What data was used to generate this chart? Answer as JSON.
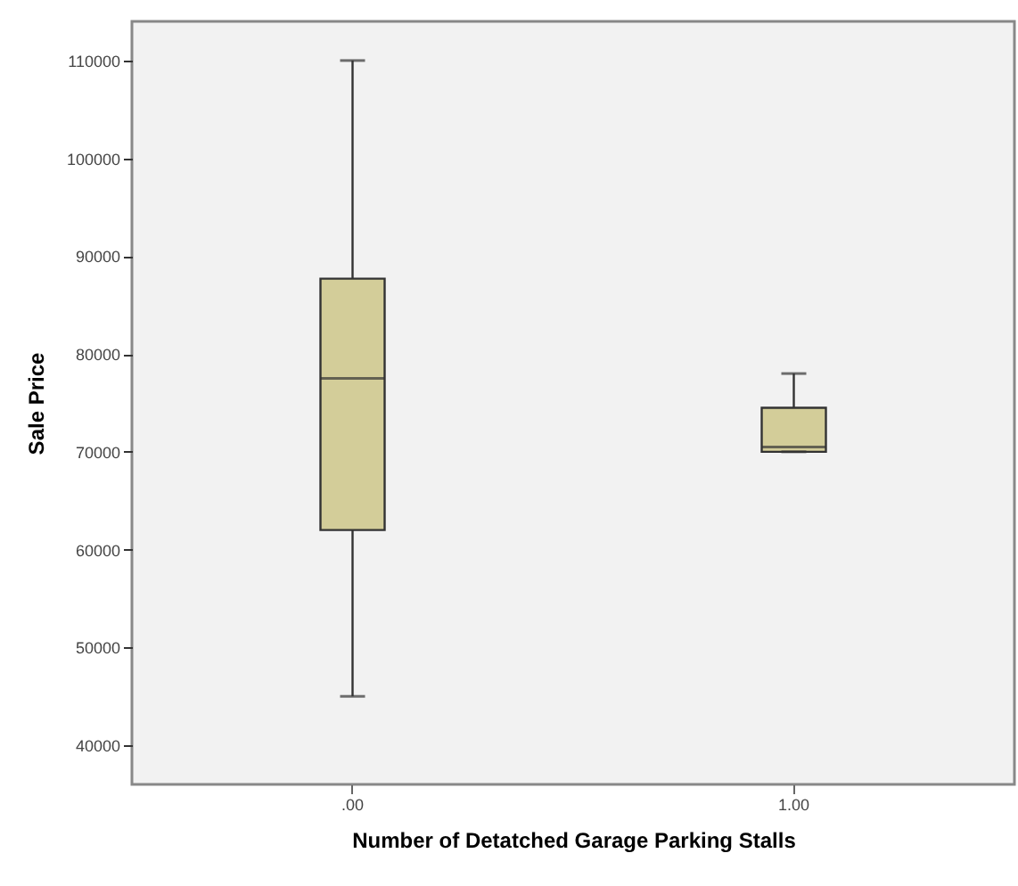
{
  "chart_data": {
    "type": "box",
    "xlabel": "Number of Detatched Garage Parking Stalls",
    "ylabel": "Sale Price",
    "categories": [
      ".00",
      "1.00"
    ],
    "ylim": [
      36000,
      114000
    ],
    "yticks": [
      40000,
      50000,
      60000,
      70000,
      80000,
      90000,
      100000,
      110000
    ],
    "series": [
      {
        "color": "#d3cd99",
        "boxes": [
          {
            "low": 45000,
            "q1": 62000,
            "median": 77500,
            "q3": 87700,
            "high": 110000
          },
          {
            "low": 70000,
            "q1": 70000,
            "median": 70500,
            "q3": 74500,
            "high": 78000
          }
        ]
      }
    ]
  }
}
